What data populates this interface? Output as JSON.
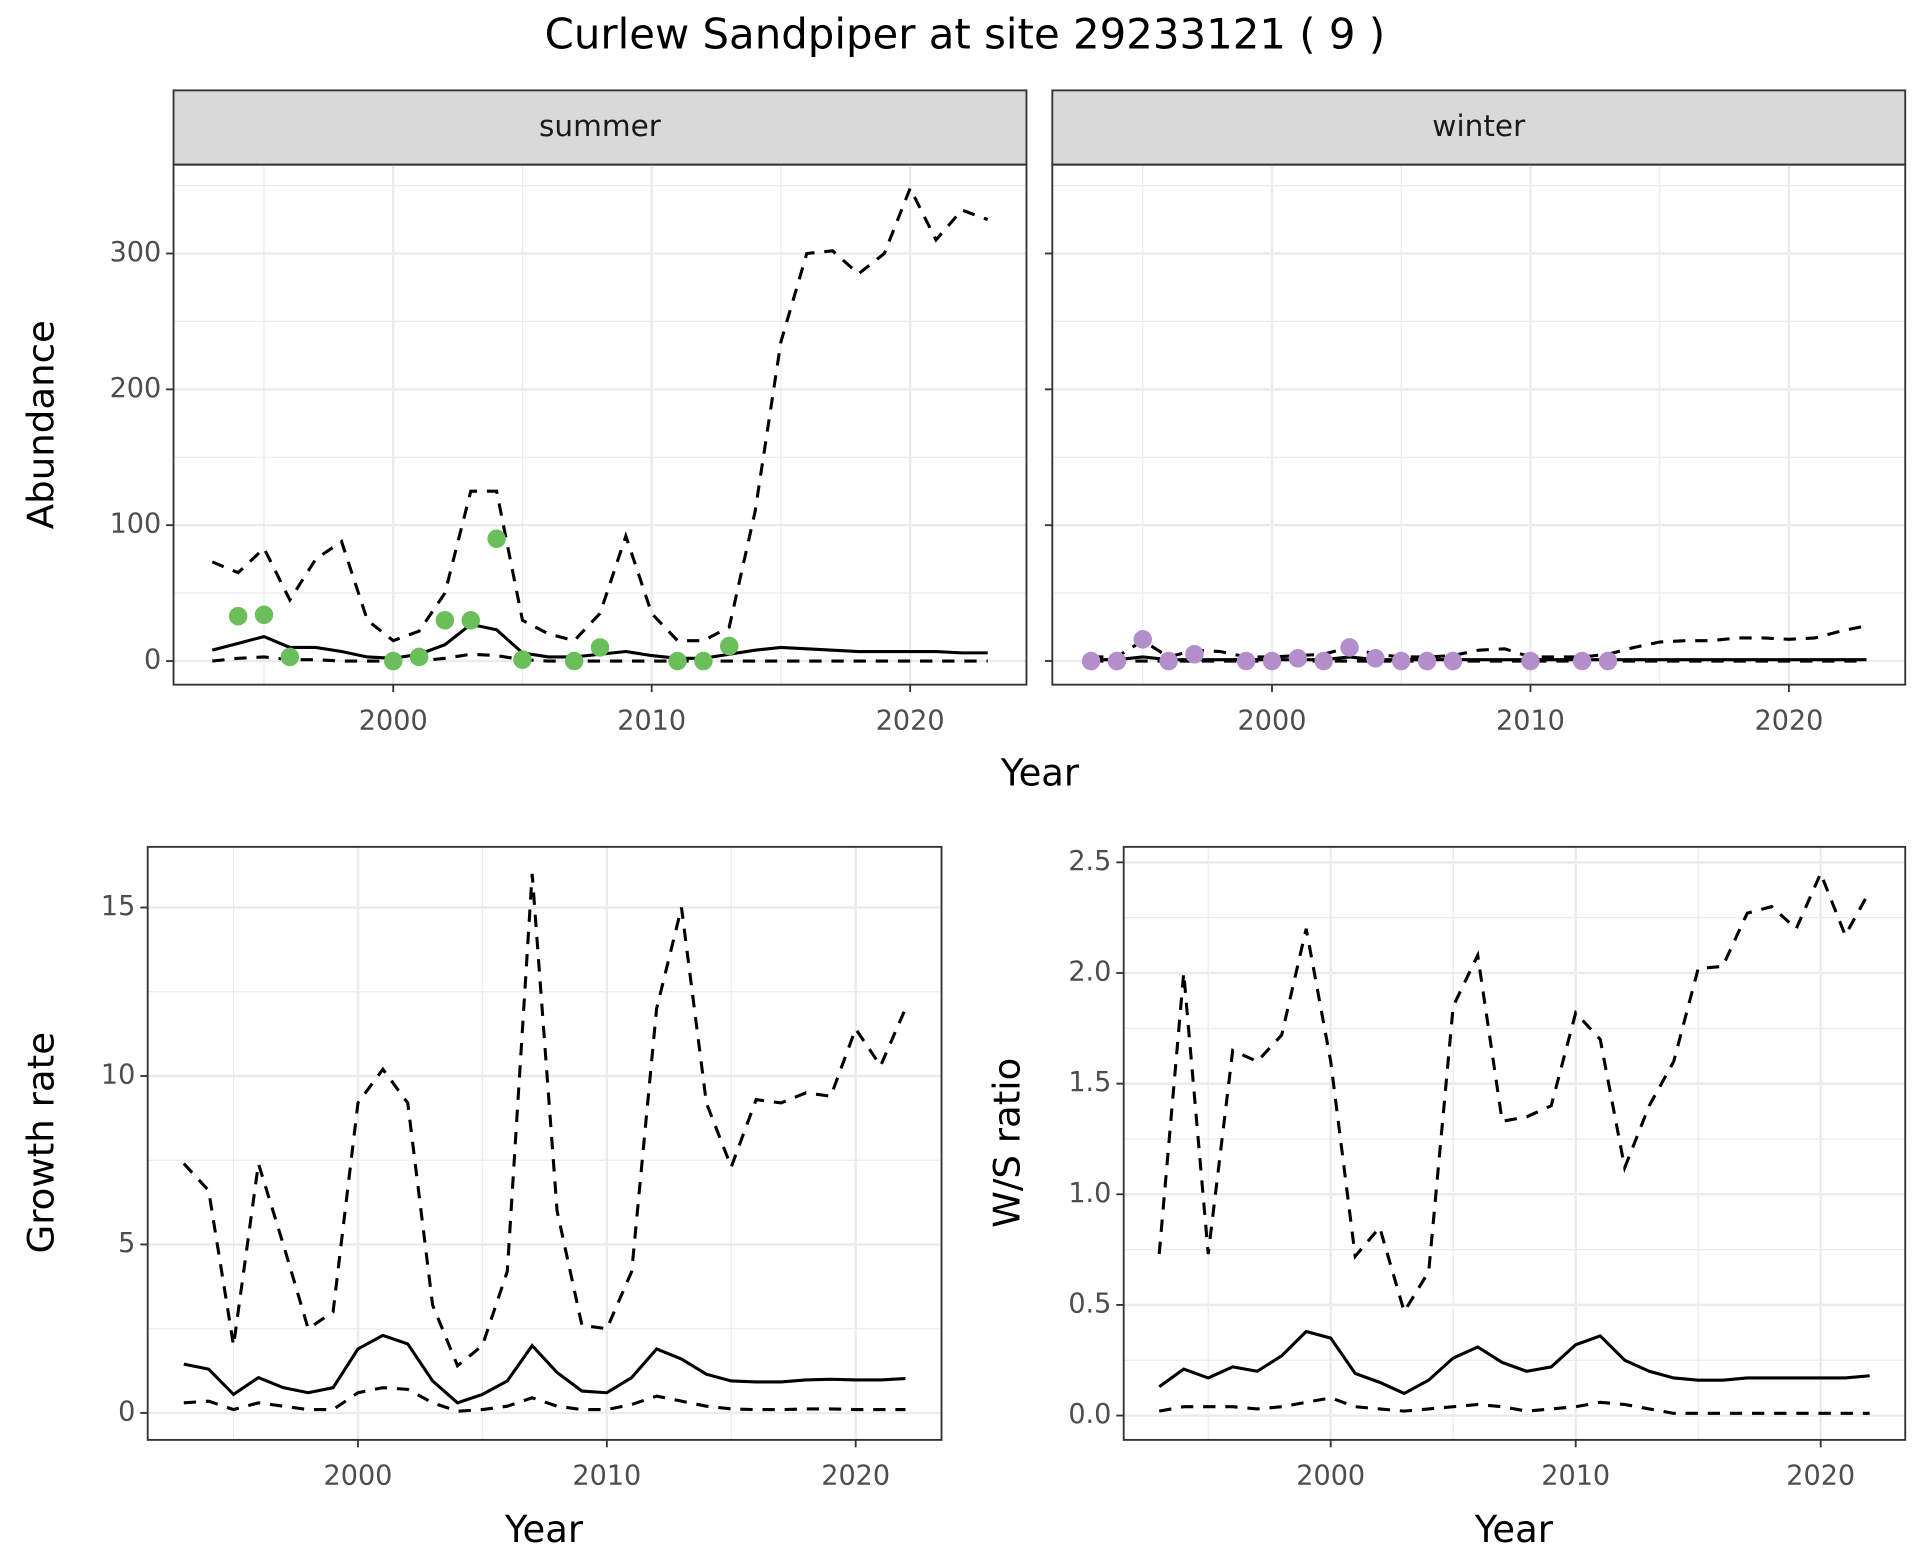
{
  "title": "Curlew Sandpiper at site 29233121 ( 9 )",
  "chart_data": [
    {
      "type": "line",
      "strip": "summer",
      "xlabel": "Year",
      "ylabel": "Abundance",
      "x": [
        1993,
        1994,
        1995,
        1996,
        1997,
        1998,
        1999,
        2000,
        2001,
        2002,
        2003,
        2004,
        2005,
        2006,
        2007,
        2008,
        2009,
        2010,
        2011,
        2012,
        2013,
        2014,
        2015,
        2016,
        2017,
        2018,
        2019,
        2020,
        2021,
        2022,
        2023
      ],
      "xlim": [
        1991.5,
        2024.5
      ],
      "xticks": [
        2000,
        2010,
        2020
      ],
      "minor_xticks": [
        1995,
        2005,
        2015
      ],
      "ylim": [
        -17.4,
        365.4
      ],
      "yticks": [
        0,
        100,
        200,
        300
      ],
      "minor_yticks": [
        50,
        150,
        250,
        350
      ],
      "grid": true,
      "series": [
        {
          "linestyle": "dashed",
          "color": "#000000",
          "values": [
            73,
            65,
            83,
            45,
            75,
            88,
            30,
            15,
            22,
            50,
            125,
            125,
            30,
            20,
            15,
            35,
            92,
            35,
            15,
            15,
            25,
            110,
            235,
            300,
            302,
            285,
            300,
            348,
            310,
            332,
            325
          ]
        },
        {
          "linestyle": "solid",
          "color": "#000000",
          "values": [
            8,
            13,
            18,
            10,
            10,
            7,
            3,
            2,
            5,
            12,
            27,
            23,
            6,
            3,
            3,
            5,
            7,
            4,
            2,
            2,
            5,
            8,
            10,
            9,
            8,
            7,
            7,
            7,
            7,
            6,
            6
          ]
        },
        {
          "linestyle": "dashed",
          "color": "#000000",
          "values": [
            0,
            2,
            3,
            1,
            1,
            0,
            0,
            0,
            0,
            2,
            5,
            4,
            1,
            0,
            0,
            0,
            0,
            0,
            0,
            0,
            0,
            0,
            0,
            0,
            0,
            0,
            0,
            0,
            0,
            0,
            0
          ]
        },
        {
          "mark": "point",
          "color": "#6abf5a",
          "values": [
            null,
            33,
            34,
            3,
            null,
            null,
            null,
            0,
            3,
            30,
            30,
            90,
            1,
            null,
            0,
            10,
            null,
            null,
            0,
            0,
            11,
            null,
            null,
            null,
            null,
            null,
            null,
            null,
            null,
            null,
            null
          ]
        }
      ]
    },
    {
      "type": "line",
      "strip": "winter",
      "x": [
        1993,
        1994,
        1995,
        1996,
        1997,
        1998,
        1999,
        2000,
        2001,
        2002,
        2003,
        2004,
        2005,
        2006,
        2007,
        2008,
        2009,
        2010,
        2011,
        2012,
        2013,
        2014,
        2015,
        2016,
        2017,
        2018,
        2019,
        2020,
        2021,
        2022,
        2023
      ],
      "xlim": [
        1991.5,
        2024.5
      ],
      "xticks": [
        2000,
        2010,
        2020
      ],
      "minor_xticks": [
        1995,
        2005,
        2015
      ],
      "ylim": [
        -17.4,
        365.4
      ],
      "yticks": [
        0,
        100,
        200,
        300
      ],
      "minor_yticks": [
        50,
        150,
        250,
        350
      ],
      "grid": true,
      "show_yticklabels": false,
      "series": [
        {
          "linestyle": "dashed",
          "color": "#000000",
          "values": [
            3,
            3,
            15,
            3,
            8,
            7,
            3,
            3,
            4,
            5,
            10,
            5,
            3,
            3,
            4,
            8,
            9,
            3,
            3,
            3,
            5,
            10,
            14,
            15,
            15,
            17,
            17,
            16,
            17,
            22,
            26
          ]
        },
        {
          "linestyle": "solid",
          "color": "#000000",
          "values": [
            1,
            1,
            3,
            1,
            1,
            1,
            1,
            1,
            1,
            1,
            3,
            1,
            1,
            1,
            1,
            1,
            1,
            1,
            1,
            1,
            1,
            1,
            1,
            1,
            1,
            1,
            1,
            1,
            1,
            1,
            1
          ]
        },
        {
          "linestyle": "dashed",
          "color": "#000000",
          "values": [
            0,
            0,
            0,
            0,
            0,
            0,
            0,
            0,
            0,
            0,
            0,
            0,
            0,
            0,
            0,
            0,
            0,
            0,
            0,
            0,
            0,
            0,
            0,
            0,
            0,
            0,
            0,
            0,
            0,
            0,
            0
          ]
        },
        {
          "mark": "point",
          "color": "#b38ecb",
          "values": [
            0,
            0,
            16,
            0,
            5,
            null,
            0,
            0,
            2,
            0,
            10,
            2,
            0,
            0,
            0,
            null,
            null,
            0,
            null,
            0,
            0,
            null,
            null,
            null,
            null,
            null,
            null,
            null,
            null,
            null,
            null
          ]
        }
      ]
    },
    {
      "type": "line",
      "xlabel": "Year",
      "ylabel": "Growth rate",
      "x": [
        1993,
        1994,
        1995,
        1996,
        1997,
        1998,
        1999,
        2000,
        2001,
        2002,
        2003,
        2004,
        2005,
        2006,
        2007,
        2008,
        2009,
        2010,
        2011,
        2012,
        2013,
        2014,
        2015,
        2016,
        2017,
        2018,
        2019,
        2020,
        2021,
        2022
      ],
      "xlim": [
        1991.55,
        2023.45
      ],
      "xticks": [
        2000,
        2010,
        2020
      ],
      "minor_xticks": [
        1995,
        2005,
        2015
      ],
      "ylim": [
        -0.8,
        16.8
      ],
      "yticks": [
        0,
        5,
        10,
        15
      ],
      "minor_yticks": [
        2.5,
        7.5,
        12.5
      ],
      "grid": true,
      "series": [
        {
          "linestyle": "dashed",
          "color": "#000000",
          "values": [
            7.4,
            6.6,
            2.0,
            7.4,
            5.0,
            2.5,
            3.0,
            9.2,
            10.2,
            9.2,
            3.2,
            1.4,
            2.0,
            4.2,
            16.0,
            6.0,
            2.6,
            2.5,
            4.2,
            12.0,
            15.0,
            9.2,
            7.3,
            9.3,
            9.2,
            9.5,
            9.4,
            11.4,
            10.3,
            12.0
          ]
        },
        {
          "linestyle": "solid",
          "color": "#000000",
          "values": [
            1.45,
            1.3,
            0.55,
            1.05,
            0.75,
            0.6,
            0.75,
            1.9,
            2.3,
            2.05,
            0.95,
            0.3,
            0.55,
            0.95,
            2.0,
            1.2,
            0.65,
            0.6,
            1.05,
            1.9,
            1.6,
            1.15,
            0.95,
            0.92,
            0.92,
            0.98,
            1.0,
            0.98,
            0.98,
            1.02
          ]
        },
        {
          "linestyle": "dashed",
          "color": "#000000",
          "values": [
            0.3,
            0.35,
            0.1,
            0.3,
            0.2,
            0.1,
            0.1,
            0.6,
            0.75,
            0.7,
            0.3,
            0.05,
            0.1,
            0.2,
            0.45,
            0.2,
            0.1,
            0.1,
            0.25,
            0.5,
            0.35,
            0.2,
            0.12,
            0.1,
            0.1,
            0.12,
            0.12,
            0.1,
            0.1,
            0.1
          ]
        }
      ]
    },
    {
      "type": "line",
      "xlabel": "Year",
      "ylabel": "W/S ratio",
      "x": [
        1993,
        1994,
        1995,
        1996,
        1997,
        1998,
        1999,
        2000,
        2001,
        2002,
        2003,
        2004,
        2005,
        2006,
        2007,
        2008,
        2009,
        2010,
        2011,
        2012,
        2013,
        2014,
        2015,
        2016,
        2017,
        2018,
        2019,
        2020,
        2021,
        2022
      ],
      "xlim": [
        1991.55,
        2023.45
      ],
      "xticks": [
        2000,
        2010,
        2020
      ],
      "minor_xticks": [
        1995,
        2005,
        2015
      ],
      "ylim": [
        -0.11,
        2.57
      ],
      "yticks": [
        {
          "value": 0,
          "label": "0.0"
        },
        0.5,
        {
          "value": 1,
          "label": "1.0"
        },
        1.5,
        {
          "value": 2,
          "label": "2.0"
        },
        2.5
      ],
      "minor_yticks": [
        0.25,
        0.75,
        1.25,
        1.75,
        2.25
      ],
      "grid": true,
      "series": [
        {
          "linestyle": "dashed",
          "color": "#000000",
          "values": [
            0.73,
            2.0,
            0.73,
            1.65,
            1.6,
            1.72,
            2.2,
            1.6,
            0.72,
            0.85,
            0.47,
            0.65,
            1.85,
            2.08,
            1.33,
            1.35,
            1.4,
            1.82,
            1.7,
            1.12,
            1.4,
            1.6,
            2.02,
            2.03,
            2.27,
            2.3,
            2.2,
            2.45,
            2.17,
            2.37
          ]
        },
        {
          "linestyle": "solid",
          "color": "#000000",
          "values": [
            0.13,
            0.21,
            0.17,
            0.22,
            0.2,
            0.27,
            0.38,
            0.35,
            0.19,
            0.15,
            0.1,
            0.16,
            0.26,
            0.31,
            0.24,
            0.2,
            0.22,
            0.32,
            0.36,
            0.25,
            0.2,
            0.17,
            0.16,
            0.16,
            0.17,
            0.17,
            0.17,
            0.17,
            0.17,
            0.18
          ]
        },
        {
          "linestyle": "dashed",
          "color": "#000000",
          "values": [
            0.02,
            0.04,
            0.04,
            0.04,
            0.03,
            0.04,
            0.06,
            0.08,
            0.04,
            0.03,
            0.02,
            0.03,
            0.04,
            0.05,
            0.04,
            0.02,
            0.03,
            0.04,
            0.06,
            0.05,
            0.03,
            0.01,
            0.01,
            0.01,
            0.01,
            0.01,
            0.01,
            0.01,
            0.01,
            0.01
          ]
        }
      ]
    }
  ]
}
